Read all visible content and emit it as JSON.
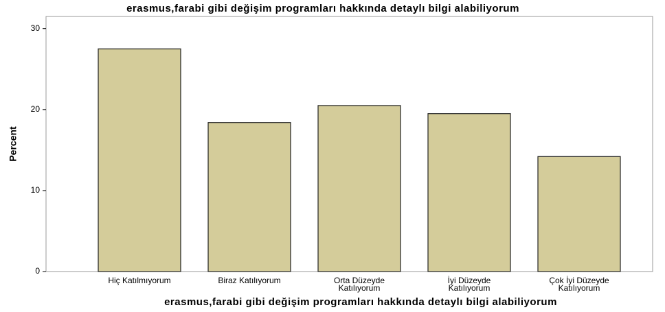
{
  "chart_data": {
    "type": "bar",
    "title": "erasmus,farabi gibi değişim programları hakkında detaylı bilgi alabiliyorum",
    "x_label": "erasmus,farabi gibi değişim programları hakkında detaylı bilgi alabiliyorum",
    "y_label": "Percent",
    "categories": [
      "Hiç Katılmıyorum",
      "Biraz Katılıyorum",
      "Orta Düzeyde\nKatılıyorum",
      "İyi Düzeyde\nKatılıyorum",
      "Çok İyi Düzeyde\nKatılıyorum"
    ],
    "values": [
      27.5,
      18.4,
      20.5,
      19.5,
      14.2
    ],
    "color": "#d4cc9a",
    "ylim": [
      0,
      31.5
    ],
    "yticks": [
      0,
      10,
      20,
      30
    ],
    "grid": false
  }
}
